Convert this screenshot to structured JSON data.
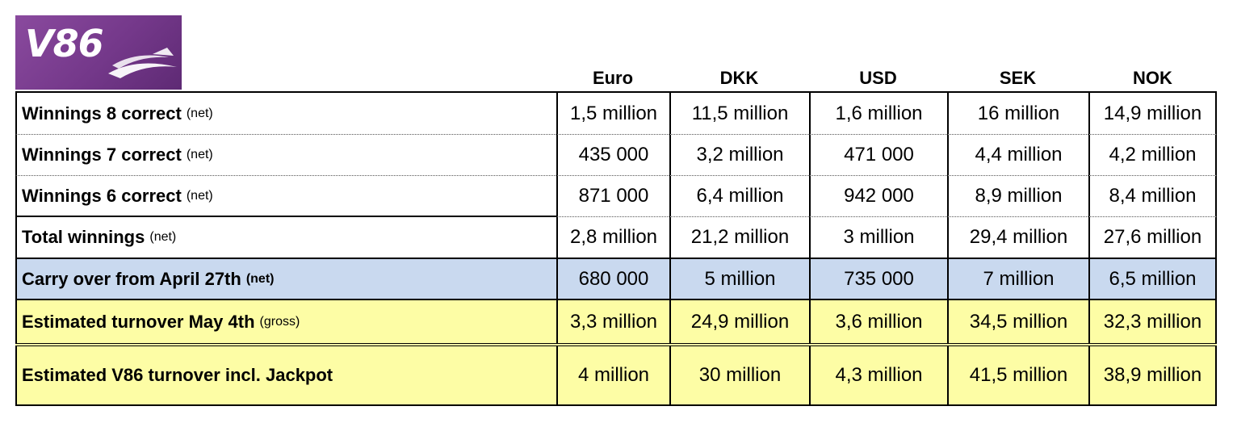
{
  "logo": {
    "text": "V86",
    "brand_color": "#74388a"
  },
  "headers": [
    "Euro",
    "DKK",
    "USD",
    "SEK",
    "NOK"
  ],
  "rows": [
    {
      "label": "Winnings 8 correct",
      "note": "(net)",
      "values": [
        "1,5 million",
        "11,5 million",
        "1,6 million",
        "16 million",
        "14,9 million"
      ]
    },
    {
      "label": "Winnings 7 correct",
      "note": "(net)",
      "values": [
        "435 000",
        "3,2 million",
        "471 000",
        "4,4 million",
        "4,2 million"
      ]
    },
    {
      "label": "Winnings 6 correct",
      "note": "(net)",
      "values": [
        "871 000",
        "6,4 million",
        "942 000",
        "8,9 million",
        "8,4 million"
      ]
    },
    {
      "label": "Total winnings",
      "note": "(net)",
      "values": [
        "2,8 million",
        "21,2 million",
        "3 million",
        "29,4 million",
        "27,6 million"
      ]
    },
    {
      "label": "Carry over from April 27th",
      "note": "(net)",
      "values": [
        "680 000",
        "5 million",
        "735 000",
        "7 million",
        "6,5 million"
      ]
    },
    {
      "label": "Estimated turnover May 4th",
      "note": "(gross)",
      "values": [
        "3,3 million",
        "24,9 million",
        "3,6 million",
        "34,5 million",
        "32,3 million"
      ]
    },
    {
      "label": "Estimated V86 turnover incl. Jackpot",
      "note": "",
      "values": [
        "4 million",
        "30 million",
        "4,3 million",
        "41,5 million",
        "38,9 million"
      ]
    }
  ],
  "colors": {
    "carry_over_row": "#c9d9ef",
    "estimate_rows": "#fdfda5"
  }
}
